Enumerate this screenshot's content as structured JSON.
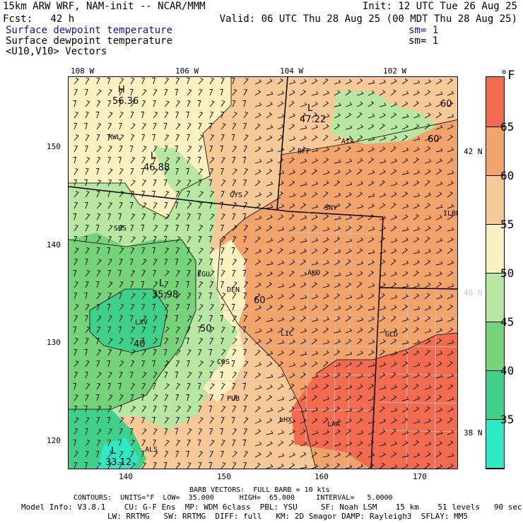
{
  "header": {
    "line1_left": "15km ARW WRF, NAM-init -- NCAR/MMM",
    "line1_right": "Init: 12 UTC Tue 26 Aug 25",
    "line2_left": "Fcst:   42 h",
    "line2_right": "Valid: 06 UTC Thu 28 Aug 25 (00 MDT Thu 28 Aug 25)",
    "field1": "Surface dewpoint temperature",
    "field1_sm": "sm= 1",
    "field2": "Surface dewpoint temperature",
    "field2_sm": "sm= 1",
    "field3": "<U10,V10> Vectors"
  },
  "axes": {
    "lon_labels": [
      "108 W",
      "106 W",
      "104 W",
      "102 W"
    ],
    "lat_labels": [
      "42 N",
      "40 N",
      "38 N"
    ],
    "y_ticks": [
      "150",
      "140",
      "130",
      "120"
    ],
    "x_ticks": [
      "140",
      "150",
      "160",
      "170"
    ]
  },
  "colorbar": {
    "unit": "°F",
    "labels": [
      "65",
      "60",
      "55",
      "50",
      "45",
      "40",
      "35"
    ],
    "colors": [
      "#f26b4f",
      "#f2a36a",
      "#f7c996",
      "#fbf0c0",
      "#b7e7a0",
      "#76d37a",
      "#3fd08c",
      "#2fe8c5"
    ]
  },
  "stations": [
    "RWL",
    "BFF",
    "AIA",
    "CYS",
    "SNY",
    "SBS",
    "EGU",
    "DEN",
    "AKO",
    "LXV",
    "LIC",
    "GLD",
    "COS",
    "PUB",
    "LHX",
    "LAA",
    "ALS",
    "ILBE"
  ],
  "extrema": [
    {
      "type": "H",
      "value": "56.36"
    },
    {
      "type": "L",
      "value": "47.22"
    },
    {
      "type": "L",
      "value": "46.88"
    },
    {
      "type": "L",
      "value": "35.98"
    },
    {
      "type": "L",
      "value": "33.12"
    }
  ],
  "contour_labels": [
    "60",
    "60",
    "60",
    "50",
    "40"
  ],
  "footer": {
    "barb": "BARB VECTORS:  FULL BARB = 10 kts",
    "contours": "CONTOURS:  UNITS=°F  LOW=  35.000      HIGH=  65.000     INTERVAL=   5.0000",
    "model1": "Model Info: V3.8.1    CU: G-F Ens  MP: WDM 6class  PBL: YSU     SF: Noah LSM    15 km    51 levels   90 sec",
    "model2": "LW: RRTMG   SW: RRTMG  DIFF: full   KM: 2D Smagor DAMP: Rayleigh3  SFLAY: MM5"
  }
}
